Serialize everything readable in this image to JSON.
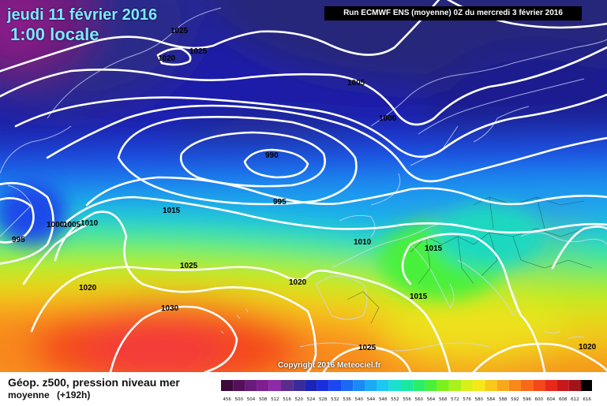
{
  "header": {
    "date": "jeudi 11 février 2016",
    "time": "1:00 locale",
    "run": "Run ECMWF ENS (moyenne) 0Z du mercredi 3 février 2016"
  },
  "copyright": "Copyright 2016 Meteociel.fr",
  "footer": {
    "title": "Géop. z500, pression niveau mer",
    "subtitle": "moyenne",
    "lead": "(+192h)"
  },
  "isobars": [
    {
      "text": "1025"
    },
    {
      "text": "1025"
    },
    {
      "text": "1020"
    },
    {
      "text": "1005"
    },
    {
      "text": "1000"
    },
    {
      "text": "990"
    },
    {
      "text": "995"
    },
    {
      "text": "1015"
    },
    {
      "text": "1000"
    },
    {
      "text": "1005"
    },
    {
      "text": "1010"
    },
    {
      "text": "995"
    },
    {
      "text": "1010"
    },
    {
      "text": "1015"
    },
    {
      "text": "1025"
    },
    {
      "text": "1020"
    },
    {
      "text": "1020"
    },
    {
      "text": "1015"
    },
    {
      "text": "1030"
    },
    {
      "text": "1025"
    },
    {
      "text": "1020"
    }
  ],
  "legend": {
    "ticks": [
      "456",
      "500",
      "504",
      "508",
      "512",
      "516",
      "520",
      "524",
      "528",
      "532",
      "536",
      "540",
      "544",
      "548",
      "552",
      "556",
      "560",
      "564",
      "568",
      "572",
      "576",
      "580",
      "584",
      "588",
      "592",
      "596",
      "600",
      "604",
      "608",
      "612",
      "616"
    ],
    "colors": [
      "#3b0a3a",
      "#54105a",
      "#6a1a7a",
      "#7e1e92",
      "#8c2aa8",
      "#5a2c8e",
      "#3a2a9a",
      "#1a24b8",
      "#1a2ee0",
      "#1a48f0",
      "#1a6af2",
      "#1a8af4",
      "#1aaaf6",
      "#1ac8f0",
      "#1ae0d0",
      "#1ae8a0",
      "#2aee6a",
      "#4af03a",
      "#7cf01a",
      "#aaf01a",
      "#d8f01a",
      "#f4e81a",
      "#f8c81a",
      "#f8a81a",
      "#f8881a",
      "#f8681a",
      "#f4481a",
      "#e8281a",
      "#c8181a",
      "#a0141a",
      "#000000"
    ]
  }
}
